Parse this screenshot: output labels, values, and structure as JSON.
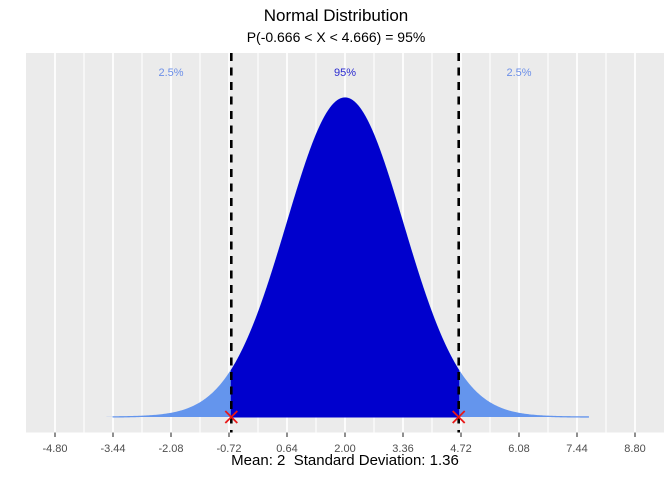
{
  "title": "Normal Distribution",
  "subtitle": "P(-0.666 < X < 4.666) = 95%",
  "caption": "Mean: 2  Standard Deviation: 1.36",
  "chart_data": {
    "type": "area",
    "distribution": "normal",
    "mean": 2,
    "sd": 1.36,
    "lower_bound": -0.666,
    "upper_bound": 4.666,
    "central_probability": 0.95,
    "tail_probability_each": 0.025,
    "curve_range": [
      -4.8,
      8.8
    ],
    "xlim": [
      -5.48,
      9.48
    ],
    "ylim_density": [
      0,
      0.308
    ],
    "peak_density": 0.2933,
    "x_ticks": [
      {
        "value": -4.8,
        "label": "-4.80"
      },
      {
        "value": -3.44,
        "label": "-3.44"
      },
      {
        "value": -2.08,
        "label": "-2.08"
      },
      {
        "value": -0.72,
        "label": "-0.72"
      },
      {
        "value": 0.64,
        "label": "0.64"
      },
      {
        "value": 2.0,
        "label": "2.00"
      },
      {
        "value": 3.36,
        "label": "3.36"
      },
      {
        "value": 4.72,
        "label": "4.72"
      },
      {
        "value": 6.08,
        "label": "6.08"
      },
      {
        "value": 7.44,
        "label": "7.44"
      },
      {
        "value": 8.8,
        "label": "8.80"
      }
    ],
    "annotations": [
      {
        "text": "2.5%",
        "x": -2.08,
        "color": "#6C8FE8",
        "name": "left-tail-percentage-label"
      },
      {
        "text": "95%",
        "x": 2.0,
        "color": "#2B2BD0",
        "name": "center-percentage-label"
      },
      {
        "text": "2.5%",
        "x": 6.08,
        "color": "#6C8FE8",
        "name": "right-tail-percentage-label"
      }
    ],
    "grid": true,
    "legend": "none"
  },
  "colors": {
    "panel_bg": "#EBEBEB",
    "gridline": "#FFFFFF",
    "tail_fill": "#6495ED",
    "center_fill": "#0000CD",
    "dashed_line": "#000000",
    "x_mark": "#E81717",
    "axis_tick": "#333333",
    "tick_label": "#4D4D4D",
    "text": "#000000"
  }
}
